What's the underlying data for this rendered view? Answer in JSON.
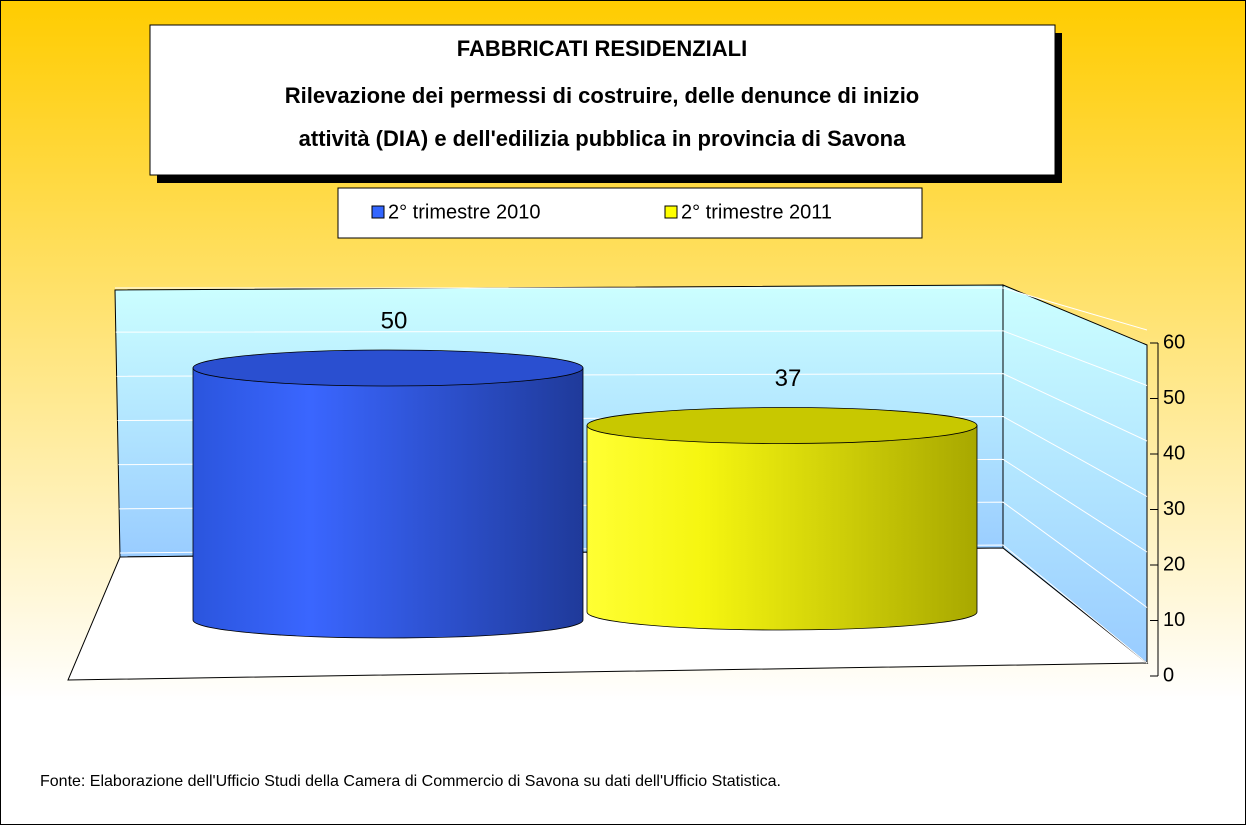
{
  "chart_data": {
    "type": "bar",
    "title": "FABBRICATI RESIDENZIALI",
    "subtitle": [
      "Rilevazione dei permessi di costruire, delle denunce di inizio",
      "attività (DIA) e dell'edilizia pubblica in provincia di Savona"
    ],
    "categories": [
      null
    ],
    "series": [
      {
        "name": "2° trimestre 2010",
        "color": "#3366ff",
        "values": [
          50
        ]
      },
      {
        "name": "2° trimestre 2011",
        "color": "#ffff00",
        "values": [
          37
        ]
      }
    ],
    "ylim": [
      0,
      60
    ],
    "yticks": [
      0,
      10,
      20,
      30,
      40,
      50,
      60
    ],
    "grid": true,
    "legend": "top",
    "note": "Fonte:  Elaborazione dell'Ufficio Studi  della Camera di Commercio di Savona su dati dell'Ufficio Statistica."
  }
}
